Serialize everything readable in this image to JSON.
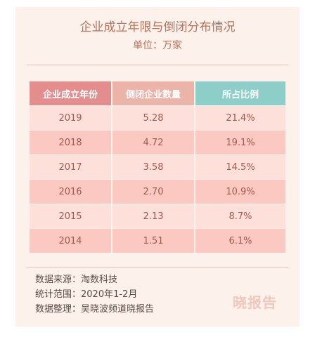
{
  "header": {
    "title": "企业成立年限与倒闭分布情况",
    "unit": "单位：万家"
  },
  "table": {
    "columns": [
      "企业成立年份",
      "倒闭企业数量",
      "所占比例"
    ],
    "rows": [
      [
        "2019",
        "5.28",
        "21.4%"
      ],
      [
        "2018",
        "4.72",
        "19.1%"
      ],
      [
        "2017",
        "3.58",
        "14.5%"
      ],
      [
        "2016",
        "2.70",
        "10.9%"
      ],
      [
        "2015",
        "2.13",
        "8.7%"
      ],
      [
        "2014",
        "1.51",
        "6.1%"
      ]
    ]
  },
  "footer": {
    "source": "数据来源：淘数科技",
    "range": "统计范围：2020年1-2月",
    "compiler": "数据整理：吴晓波频道晓报告"
  },
  "brand": "晓报告",
  "colors": {
    "background": "#fdf1ec",
    "header_col1": "#e38d8f",
    "header_col2": "#ecb3a9",
    "header_col3": "#8dcfc8",
    "row_light": "#fde0da",
    "row_dark": "#fbc9c2"
  }
}
